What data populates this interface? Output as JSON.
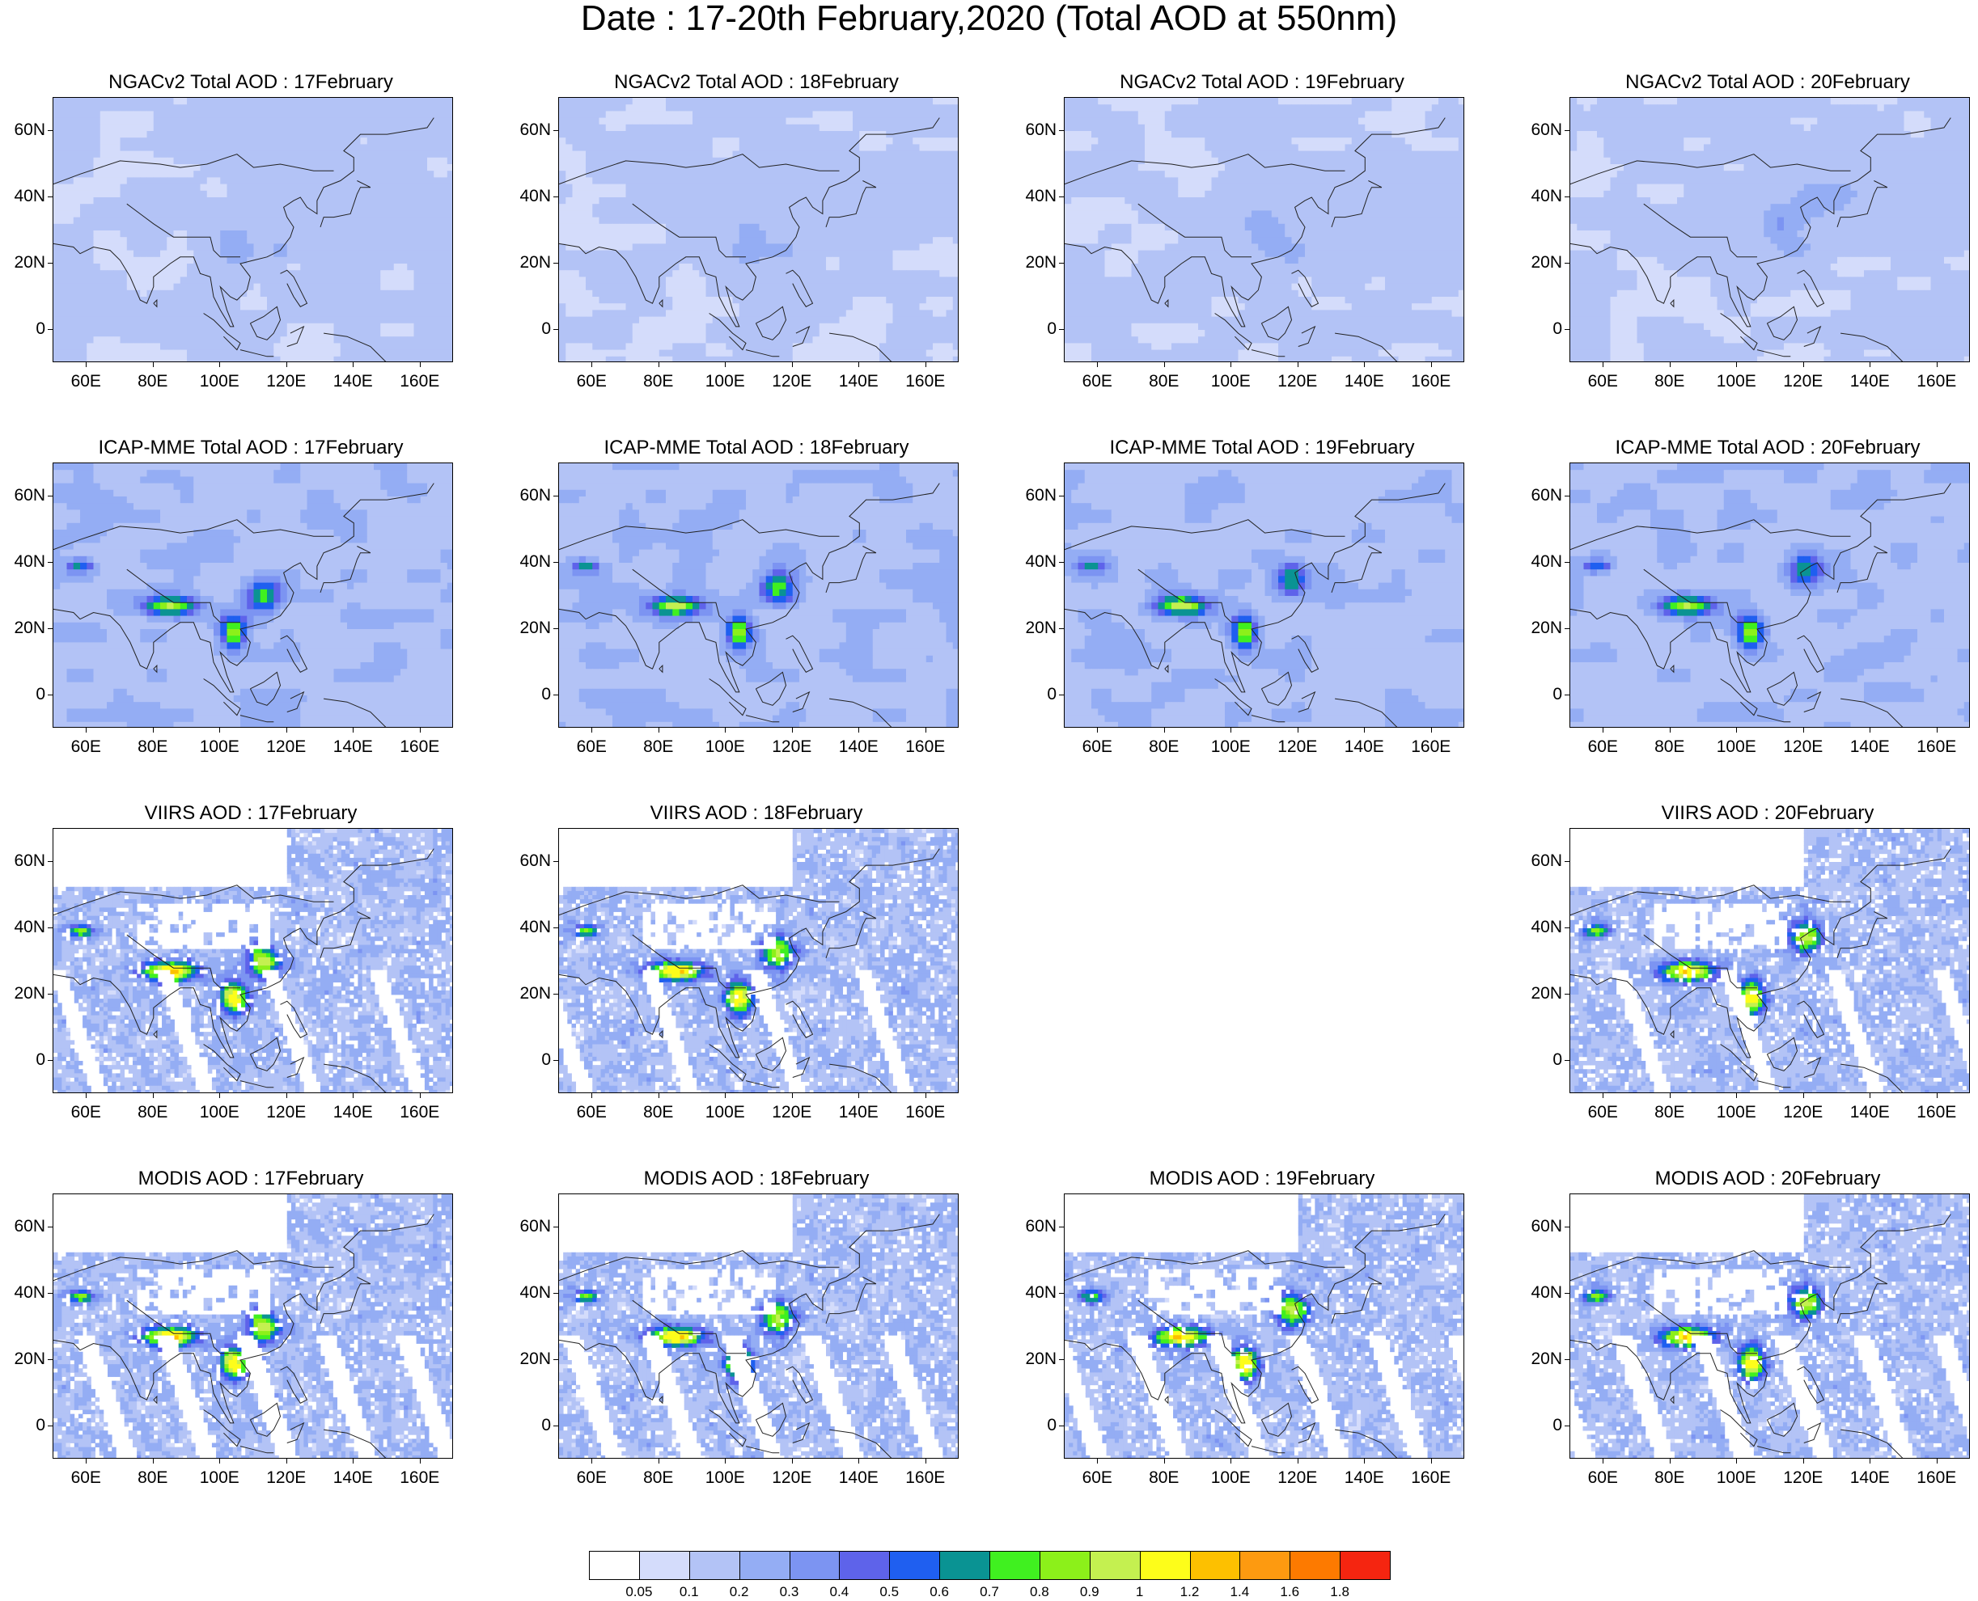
{
  "title": "Date : 17-20th February,2020 (Total AOD at 550nm)",
  "lat_labels": [
    "60N",
    "40N",
    "20N",
    "0"
  ],
  "lon_labels": [
    "60E",
    "80E",
    "100E",
    "120E",
    "140E",
    "160E"
  ],
  "map_extent": {
    "lon_range": [
      50,
      170
    ],
    "lat_range": [
      -10,
      70
    ]
  },
  "panels": [
    {
      "id": "ngac-17",
      "title": "NGACv2 Total AOD : 17February",
      "dataset": "model",
      "day": 17,
      "row": 0,
      "col": 0
    },
    {
      "id": "ngac-18",
      "title": "NGACv2 Total AOD : 18February",
      "dataset": "model",
      "day": 18,
      "row": 0,
      "col": 1
    },
    {
      "id": "ngac-19",
      "title": "NGACv2 Total AOD : 19February",
      "dataset": "model",
      "day": 19,
      "row": 0,
      "col": 2
    },
    {
      "id": "ngac-20",
      "title": "NGACv2 Total AOD : 20February",
      "dataset": "model",
      "day": 20,
      "row": 0,
      "col": 3
    },
    {
      "id": "icap-17",
      "title": "ICAP-MME Total AOD : 17February",
      "dataset": "ensemble",
      "day": 17,
      "row": 1,
      "col": 0
    },
    {
      "id": "icap-18",
      "title": "ICAP-MME Total AOD : 18February",
      "dataset": "ensemble",
      "day": 18,
      "row": 1,
      "col": 1
    },
    {
      "id": "icap-19",
      "title": "ICAP-MME Total AOD : 19February",
      "dataset": "ensemble",
      "day": 19,
      "row": 1,
      "col": 2
    },
    {
      "id": "icap-20",
      "title": "ICAP-MME Total AOD : 20February",
      "dataset": "ensemble",
      "day": 20,
      "row": 1,
      "col": 3
    },
    {
      "id": "viirs-17",
      "title": "VIIRS AOD : 17February",
      "dataset": "viirs",
      "day": 17,
      "row": 2,
      "col": 0
    },
    {
      "id": "viirs-18",
      "title": "VIIRS AOD : 18February",
      "dataset": "viirs",
      "day": 18,
      "row": 2,
      "col": 1
    },
    {
      "id": "viirs-20",
      "title": "VIIRS AOD : 20February",
      "dataset": "viirs",
      "day": 20,
      "row": 2,
      "col": 3
    },
    {
      "id": "modis-17",
      "title": "MODIS AOD : 17February",
      "dataset": "modis",
      "day": 17,
      "row": 3,
      "col": 0
    },
    {
      "id": "modis-18",
      "title": "MODIS AOD : 18February",
      "dataset": "modis",
      "day": 18,
      "row": 3,
      "col": 1
    },
    {
      "id": "modis-19",
      "title": "MODIS AOD : 19February",
      "dataset": "modis",
      "day": 19,
      "row": 3,
      "col": 2
    },
    {
      "id": "modis-20",
      "title": "MODIS AOD : 20February",
      "dataset": "modis",
      "day": 20,
      "row": 3,
      "col": 3
    }
  ],
  "colorbar": {
    "labels": [
      "0.05",
      "0.1",
      "0.2",
      "0.3",
      "0.4",
      "0.5",
      "0.6",
      "0.7",
      "0.8",
      "0.9",
      "1",
      "1.2",
      "1.4",
      "1.6",
      "1.8"
    ],
    "colors": [
      "#ffffff",
      "#d4dcfb",
      "#b3c3f6",
      "#94adf4",
      "#7c94f2",
      "#5e63ea",
      "#1f5ff0",
      "#0a9393",
      "#40f020",
      "#8cf01a",
      "#c4f050",
      "#fdfd1a",
      "#fdc000",
      "#fd9a10",
      "#fd7a00",
      "#f52510"
    ]
  }
}
